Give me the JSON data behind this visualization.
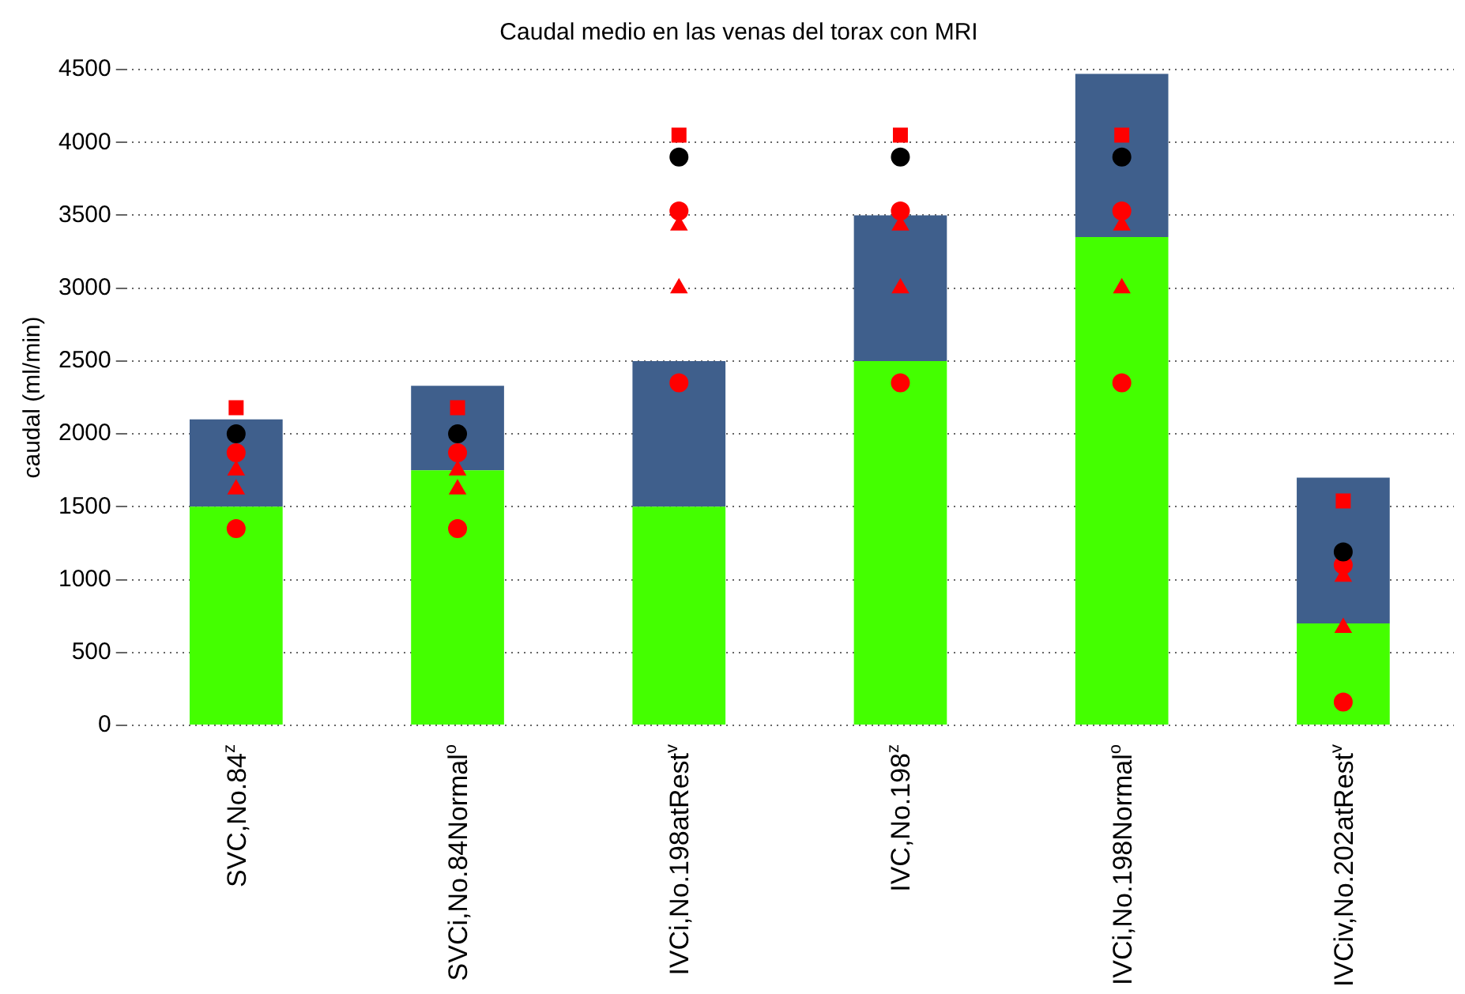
{
  "chart_data": {
    "type": "bar",
    "title": "Caudal medio en las venas del torax con MRI",
    "ylabel": "caudal (ml/min)",
    "categories": [
      "SVC,No.84$^{z}$",
      "SVCi,No.84Normal$^{o}$",
      "IVCi,No.198atRest$^{v}$",
      "IVC,No.198$^{z}$",
      "IVCi,No.198Normal$^{o}$",
      "IVCiv,No.202atRest$^{v}$"
    ],
    "stacked": true,
    "series": [
      {
        "color": "#44ff00",
        "values": [
          1500,
          1750,
          1500,
          2500,
          3350,
          700
        ]
      },
      {
        "color": "#3f5f8c",
        "values": [
          600,
          580,
          1000,
          1000,
          1120,
          1000
        ]
      },
      {
        "type": "scatter",
        "marker": "square",
        "color": "#ff0000",
        "values": [
          2180,
          2180,
          4050,
          4050,
          4050,
          1540
        ]
      },
      {
        "type": "scatter",
        "marker": "circle",
        "color": "#000000",
        "values": [
          2000,
          2000,
          3900,
          3900,
          3900,
          1190
        ]
      },
      {
        "type": "scatter",
        "marker": "circle",
        "color": "#ff0000",
        "values": [
          1870,
          1870,
          3530,
          3530,
          3530,
          1100
        ]
      },
      {
        "type": "scatter",
        "marker": "triangle",
        "color": "#ff0000",
        "values": [
          1620,
          1620,
          3430,
          3430,
          3430,
          1020
        ]
      },
      {
        "type": "scatter",
        "marker": "triangle",
        "color": "#ff0000",
        "values": [
          1750,
          1750,
          3000,
          3000,
          3000,
          670
        ]
      },
      {
        "type": "scatter",
        "marker": "circle",
        "color": "#ff0000",
        "values": [
          1350,
          1350,
          2350,
          2350,
          2350,
          160
        ]
      }
    ],
    "ylim": [
      0,
      4500
    ],
    "yticks": [
      0,
      500,
      1000,
      1500,
      2000,
      2500,
      3000,
      3500,
      4000,
      4500
    ],
    "grid": "y",
    "legend": false
  }
}
